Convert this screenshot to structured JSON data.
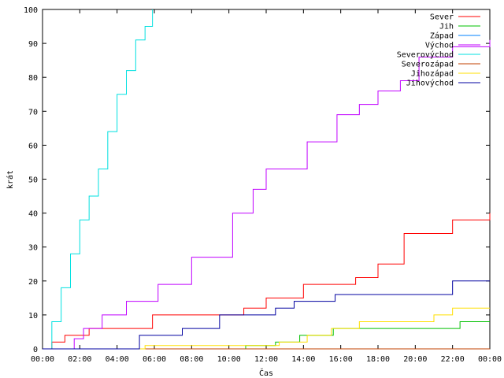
{
  "chart_data": {
    "type": "line",
    "xlabel": "Čas",
    "ylabel": "krát",
    "xlim": [
      0,
      24
    ],
    "ylim": [
      0,
      100
    ],
    "x_ticks": [
      {
        "value": 0,
        "label": "00:00"
      },
      {
        "value": 2,
        "label": "02:00"
      },
      {
        "value": 4,
        "label": "04:00"
      },
      {
        "value": 6,
        "label": "06:00"
      },
      {
        "value": 8,
        "label": "08:00"
      },
      {
        "value": 10,
        "label": "10:00"
      },
      {
        "value": 12,
        "label": "12:00"
      },
      {
        "value": 14,
        "label": "14:00"
      },
      {
        "value": 16,
        "label": "16:00"
      },
      {
        "value": 18,
        "label": "18:00"
      },
      {
        "value": 20,
        "label": "20:00"
      },
      {
        "value": 22,
        "label": "22:00"
      },
      {
        "value": 24,
        "label": "00:00"
      }
    ],
    "y_ticks": [
      0,
      10,
      20,
      30,
      40,
      50,
      60,
      70,
      80,
      90,
      100
    ],
    "grid": false,
    "legend_position": "top-right",
    "series": [
      {
        "name": "Sever",
        "color": "#ff0000",
        "x": [
          0,
          0.5,
          1.2,
          2.5,
          5.9,
          7.7,
          10.8,
          12.0,
          14.0,
          16.8,
          18.0,
          19.4,
          22.0,
          24
        ],
        "y": [
          0,
          2,
          4,
          6,
          10,
          10,
          12,
          15,
          19,
          21,
          25,
          34,
          38,
          40
        ]
      },
      {
        "name": "Jih",
        "color": "#00c000",
        "x": [
          0,
          10.9,
          12.5,
          13.8,
          15.6,
          22.0,
          22.4,
          24
        ],
        "y": [
          0,
          1,
          2,
          4,
          6,
          6,
          8,
          8
        ]
      },
      {
        "name": "Západ",
        "color": "#0080ff",
        "x": [
          0,
          24
        ],
        "y": [
          0,
          0
        ]
      },
      {
        "name": "Východ",
        "color": "#c000ff",
        "x": [
          0,
          1.7,
          2.2,
          3.2,
          4.5,
          6.2,
          8.0,
          10.2,
          11.3,
          12.0,
          13.0,
          14.2,
          15.8,
          17.0,
          18.0,
          19.2,
          20.2,
          22.0,
          24
        ],
        "y": [
          0,
          3,
          6,
          10,
          14,
          19,
          27,
          40,
          47,
          53,
          53,
          61,
          69,
          72,
          76,
          79,
          86,
          89,
          91
        ]
      },
      {
        "name": "Severovýchod",
        "color": "#00e0e0",
        "x": [
          0,
          0.5,
          1.0,
          1.5,
          2.0,
          2.5,
          3.0,
          3.5,
          4.0,
          4.5,
          5.0,
          5.5,
          5.9
        ],
        "y": [
          0,
          8,
          18,
          28,
          38,
          45,
          53,
          64,
          75,
          82,
          91,
          95,
          100
        ]
      },
      {
        "name": "Severozápad",
        "color": "#c04000",
        "x": [
          0,
          24
        ],
        "y": [
          0,
          0
        ]
      },
      {
        "name": "Jihozápad",
        "color": "#ffdf00",
        "x": [
          0,
          5.5,
          10.5,
          12.7,
          14.2,
          15.5,
          17.0,
          21.0,
          22.0,
          24
        ],
        "y": [
          0,
          1,
          1,
          2,
          4,
          6,
          8,
          10,
          12,
          12
        ]
      },
      {
        "name": "Jihovýchod",
        "color": "#0000a0",
        "x": [
          0,
          4.9,
          5.2,
          7.5,
          9.5,
          12.5,
          13.5,
          15.7,
          22.0,
          24
        ],
        "y": [
          0,
          0,
          4,
          6,
          10,
          12,
          14,
          16,
          20,
          20
        ]
      }
    ]
  }
}
